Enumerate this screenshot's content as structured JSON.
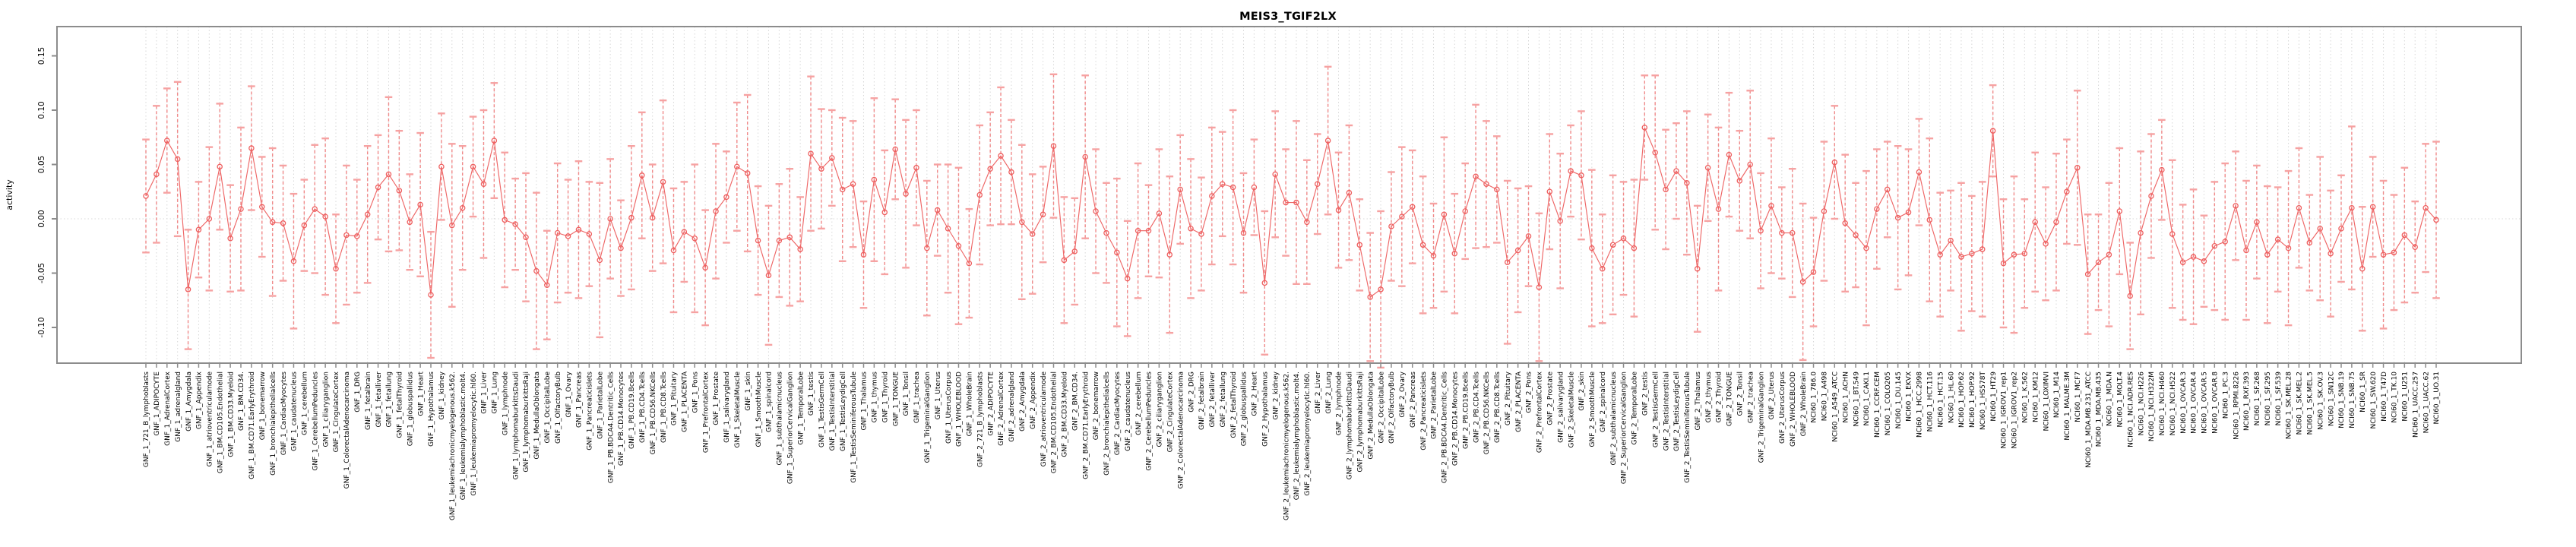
{
  "chart_data": {
    "type": "line",
    "subtype": "points-with-error-bars",
    "title": "MEIS3_TGIF2LX",
    "xlabel": "",
    "ylabel": "activity",
    "ylim": [
      -0.133,
      0.177
    ],
    "yticks": [
      0.15,
      0.1,
      0.05,
      0.0,
      -0.05,
      -0.1
    ],
    "ytick_labels": [
      "0.15",
      "0.10",
      "0.05",
      "0.00",
      "-0.05",
      "-0.10"
    ],
    "grid": "vertical dotted gridline at every category; dotted horizontal line at y=0",
    "legend": "none",
    "point_marker": "open-circle",
    "categories": [
      "GNF_1_721_B_lymphoblasts",
      "GNF_1_ADIPOCYTE",
      "GNF_1_AdrenalCortex",
      "GNF_1_adrenalgland",
      "GNF_1_Amygdala",
      "GNF_1_Appendix",
      "GNF_1_atrioventricularnode",
      "GNF_1_BM.CD105.Endothelial",
      "GNF_1_BM.CD33.Myeloid",
      "GNF_1_BM.CD34.",
      "GNF_1_BM.CD71.EarlyErythroid",
      "GNF_1_bonemarrow",
      "GNF_1_bronchialepithelialcells",
      "GNF_1_CardiacMyocytes",
      "GNF_1_caudatenucleus",
      "GNF_1_cerebellum",
      "GNF_1_CerebellumPeduncles",
      "GNF_1_ciliaryganglion",
      "GNF_1_CingulateCortex",
      "GNF_1_ColorectalAdenocarcinoma",
      "GNF_1_DRG",
      "GNF_1_fetalbrain",
      "GNF_1_fetalliver",
      "GNF_1_fetallung",
      "GNF_1_fetalThyroid",
      "GNF_1_globuspallidus",
      "GNF_1_Heart",
      "GNF_1_Hypothalamus",
      "GNF_1_kidney",
      "GNF_1_leukemiachronicmyelogenous.k562.",
      "GNF_1_leukemialymphoblastic.molt4.",
      "GNF_1_leukemiapromyelocytic.hl60.",
      "GNF_1_Liver",
      "GNF_1_Lung",
      "GNF_1_lymphnode",
      "GNF_1_lymphomaburkittsDaudi",
      "GNF_1_lymphomaburkittsRaji",
      "GNF_1_MedullaOblongata",
      "GNF_1_OccipitalLobe",
      "GNF_1_OlfactoryBulb",
      "GNF_1_Ovary",
      "GNF_1_Pancreas",
      "GNF_1_Pancreaticislets",
      "GNF_1_ParietalLobe",
      "GNF_1_PB.BDCA4.Dentritic_Cells",
      "GNF_1_PB.CD14.Monocytes",
      "GNF_1_PB.CD19.Bcells",
      "GNF_1_PB.CD4.Tcells",
      "GNF_1_PB.CD56.NKCells",
      "GNF_1_PB.CD8.Tcells",
      "GNF_1_Pituitary",
      "GNF_1_PLACENTA",
      "GNF_1_Pons",
      "GNF_1_PrefrontalCortex",
      "GNF_1_Prostate",
      "GNF_1_salivarygland",
      "GNF_1_SkeletalMuscle",
      "GNF_1_skin",
      "GNF_1_SmoothMuscle",
      "GNF_1_spinalcord",
      "GNF_1_subthalamicnucleus",
      "GNF_1_SuperiorCervicalGanglion",
      "GNF_1_TemporalLobe",
      "GNF_1_testis",
      "GNF_1_TestisGermCell",
      "GNF_1_TestisInterstitial",
      "GNF_1_TestisLeydigCell",
      "GNF_1_TestisSeminiferousTubule",
      "GNF_1_Thalamus",
      "GNF_1_thymus",
      "GNF_1_Thyroid",
      "GNF_1_TONGUE",
      "GNF_1_Tonsil",
      "GNF_1_trachea",
      "GNF_1_TrigeminalGanglion",
      "GNF_1_Uterus",
      "GNF_1_UterusCorpus",
      "GNF_1_WHOLEBLOOD",
      "GNF_1_WholeBrain",
      "GNF_2_721_B_lymphoblasts",
      "GNF_2_ADIPOCYTE",
      "GNF_2_AdrenalCortex",
      "GNF_2_adrenalgland",
      "GNF_2_Amygdala",
      "GNF_2_Appendix",
      "GNF_2_atrioventricularnode",
      "GNF_2_BM.CD105.Endothelial",
      "GNF_2_BM.CD33.Myeloid",
      "GNF_2_BM.CD34.",
      "GNF_2_BM.CD71.EarlyErythroid",
      "GNF_2_bonemarrow",
      "GNF_2_bronchialepithelialcells",
      "GNF_2_CardiacMyocytes",
      "GNF_2_caudatenucleus",
      "GNF_2_cerebellum",
      "GNF_2_CerebellumPeduncles",
      "GNF_2_ciliaryganglion",
      "GNF_2_CingulateCortex",
      "GNF_2_ColorectalAdenocarcinoma",
      "GNF_2_DRG",
      "GNF_2_fetalbrain",
      "GNF_2_fetalliver",
      "GNF_2_fetallung",
      "GNF_2_fetalThyroid",
      "GNF_2_globuspallidus",
      "GNF_2_Heart",
      "GNF_2_Hypothalamus",
      "GNF_2_kidney",
      "GNF_2_leukemiachronicmyelogenous.k562.",
      "GNF_2_leukemialymphoblastic.molt4.",
      "GNF_2_leukemiapromyelocytic.hl60.",
      "GNF_2_Liver",
      "GNF_2_Lung",
      "GNF_2_lymphnode",
      "GNF_2_lymphomaburkittsDaudi",
      "GNF_2_lymphomaburkittsRaji",
      "GNF_2_MedullaOblongata",
      "GNF_2_OccipitalLobe",
      "GNF_2_OlfactoryBulb",
      "GNF_2_Ovary",
      "GNF_2_Pancreas",
      "GNF_2_Pancreaticislets",
      "GNF_2_ParietalLobe",
      "GNF_2_PB.BDCA4.Dentritic_Cells",
      "GNF_2_PB.CD14.Monocytes",
      "GNF_2_PB.CD19.Bcells",
      "GNF_2_PB.CD4.Tcells",
      "GNF_2_PB.CD56.NKCells",
      "GNF_2_PB.CD8.Tcells",
      "GNF_2_Pituitary",
      "GNF_2_PLACENTA",
      "GNF_2_Pons",
      "GNF_2_PrefrontalCortex",
      "GNF_2_Prostate",
      "GNF_2_salivarygland",
      "GNF_2_SkeletalMuscle",
      "GNF_2_skin",
      "GNF_2_SmoothMuscle",
      "GNF_2_spinalcord",
      "GNF_2_subthalamicnucleus",
      "GNF_2_SuperiorCervicalGanglion",
      "GNF_2_TemporalLobe",
      "GNF_2_testis",
      "GNF_2_TestisGermCell",
      "GNF_2_TestisInterstitial",
      "GNF_2_TestisLeydigCell",
      "GNF_2_TestisSeminiferousTubule",
      "GNF_2_Thalamus",
      "GNF_2_thymus",
      "GNF_2_Thyroid",
      "GNF_2_TONGUE",
      "GNF_2_Tonsil",
      "GNF_2_trachea",
      "GNF_2_TrigeminalGanglion",
      "GNF_2_Uterus",
      "GNF_2_UterusCorpus",
      "GNF_2_WHOLEBLOOD",
      "GNF_2_WholeBrain",
      "NCI60_1_786.0",
      "NCI60_1_A498",
      "NCI60_1_A549_ATCC",
      "NCI60_1_ACHN",
      "NCI60_1_BT.549",
      "NCI60_1_CAKI.1",
      "NCI60_1_CCRF.CEM",
      "NCI60_1_COLO205",
      "NCI60_1_DU.145",
      "NCI60_1_EKVX",
      "NCI60_1_HCC.2998",
      "NCI60_1_HCT.116",
      "NCI60_1_HCT.15",
      "NCI60_1_HL.60",
      "NCI60_1_HOP.62",
      "NCI60_1_HOP.92",
      "NCI60_1_HS578T",
      "NCI60_1_HT29",
      "NCI60_1_IGROV1_rep1",
      "NCI60_1_IGROV1_rep2",
      "NCI60_1_K.562",
      "NCI60_1_KM12",
      "NCI60_1_LOXIMVI",
      "NCI60_1_M14",
      "NCI60_1_MALME.3M",
      "NCI60_1_MCF7",
      "NCI60_1_MDA.MB.231_ATCC",
      "NCI60_1_MDA.MB.435",
      "NCI60_1_MDA.N",
      "NCI60_1_MOLT.4",
      "NCI60_1_NCI.ADR.RES",
      "NCI60_1_NCI.H226",
      "NCI60_1_NCI.H322M",
      "NCI60_1_NCI.H460",
      "NCI60_1_NCI.H522",
      "NCI60_1_OVCAR.3",
      "NCI60_1_OVCAR.4",
      "NCI60_1_OVCAR.5",
      "NCI60_1_OVCAR.8",
      "NCI60_1_PC.3",
      "NCI60_1_RPMI.8226",
      "NCI60_1_RXF.393",
      "NCI60_1_SF.268",
      "NCI60_1_SF.295",
      "NCI60_1_SF.539",
      "NCI60_1_SK.MEL.28",
      "NCI60_1_SK.MEL.2",
      "NCI60_1_SK.MEL.5",
      "NCI60_1_SK.OV.3",
      "NCI60_1_SN12C",
      "NCI60_1_SNB.19",
      "NCI60_1_SNB.75",
      "NCI60_1_SR",
      "NCI60_1_SW.620",
      "NCI60_1_T47D",
      "NCI60_1_TK.10",
      "NCI60_1_U251",
      "NCI60_1_UACC.257",
      "NCI60_1_UACC.62",
      "NCI60_1_UO.31"
    ],
    "values": [
      0.021,
      0.041,
      0.072,
      0.055,
      -0.065,
      -0.01,
      0.0,
      0.048,
      -0.018,
      0.009,
      0.065,
      0.011,
      -0.003,
      -0.004,
      -0.039,
      -0.006,
      0.009,
      0.002,
      -0.046,
      -0.015,
      -0.016,
      0.004,
      0.029,
      0.041,
      0.026,
      -0.003,
      0.013,
      -0.07,
      0.048,
      -0.006,
      0.01,
      0.048,
      0.032,
      0.072,
      -0.001,
      -0.005,
      -0.017,
      -0.048,
      -0.061,
      -0.013,
      -0.016,
      -0.01,
      -0.014,
      -0.038,
      0.0,
      -0.027,
      0.001,
      0.04,
      0.001,
      0.034,
      -0.029,
      -0.012,
      -0.018,
      -0.045,
      0.007,
      0.02,
      0.048,
      0.042,
      -0.02,
      -0.052,
      -0.02,
      -0.017,
      -0.028,
      0.06,
      0.046,
      0.056,
      0.027,
      0.032,
      -0.033,
      0.036,
      0.006,
      0.064,
      0.023,
      0.047,
      -0.027,
      0.008,
      -0.009,
      -0.025,
      -0.041,
      0.022,
      0.046,
      0.058,
      0.043,
      -0.003,
      -0.014,
      0.004,
      0.067,
      -0.038,
      -0.03,
      0.057,
      0.007,
      -0.013,
      -0.031,
      -0.055,
      -0.011,
      -0.011,
      0.005,
      -0.033,
      0.027,
      -0.009,
      -0.014,
      0.021,
      0.032,
      0.029,
      -0.013,
      0.029,
      -0.059,
      0.041,
      0.015,
      0.015,
      -0.003,
      0.032,
      0.072,
      0.008,
      0.024,
      -0.024,
      -0.072,
      -0.065,
      -0.007,
      0.002,
      0.011,
      -0.024,
      -0.034,
      0.004,
      -0.032,
      0.007,
      0.039,
      0.032,
      0.027,
      -0.04,
      -0.029,
      -0.016,
      -0.063,
      0.025,
      -0.002,
      0.044,
      0.04,
      -0.027,
      -0.046,
      -0.024,
      -0.018,
      -0.027,
      0.084,
      0.061,
      0.027,
      0.044,
      0.033,
      -0.046,
      0.047,
      0.009,
      0.059,
      0.035,
      0.05,
      -0.011,
      0.012,
      -0.013,
      -0.013,
      -0.058,
      -0.049,
      0.007,
      0.052,
      -0.004,
      -0.015,
      -0.027,
      0.009,
      0.027,
      0.001,
      0.006,
      0.043,
      -0.001,
      -0.033,
      -0.02,
      -0.035,
      -0.032,
      -0.028,
      0.081,
      -0.041,
      -0.033,
      -0.032,
      -0.003,
      -0.023,
      -0.003,
      0.025,
      0.047,
      -0.051,
      -0.04,
      -0.033,
      0.007,
      -0.071,
      -0.013,
      0.021,
      0.045,
      -0.014,
      -0.04,
      -0.035,
      -0.039,
      -0.025,
      -0.021,
      0.012,
      -0.029,
      -0.003,
      -0.033,
      -0.019,
      -0.027,
      0.01,
      -0.022,
      -0.009,
      -0.032,
      -0.009,
      0.01,
      -0.046,
      0.011,
      -0.033,
      -0.031,
      -0.015,
      -0.026,
      0.01,
      -0.001
    ],
    "err": [
      0.052,
      0.063,
      0.048,
      0.071,
      0.055,
      0.044,
      0.066,
      0.058,
      0.049,
      0.075,
      0.057,
      0.046,
      0.068,
      0.053,
      0.062,
      0.042,
      0.059,
      0.072,
      0.05,
      0.064,
      0.052,
      0.063,
      0.048,
      0.071,
      0.055,
      0.044,
      0.066,
      0.058,
      0.049,
      0.075,
      0.057,
      0.046,
      0.068,
      0.053,
      0.062,
      0.042,
      0.059,
      0.072,
      0.05,
      0.064,
      0.052,
      0.063,
      0.048,
      0.071,
      0.055,
      0.044,
      0.066,
      0.058,
      0.049,
      0.075,
      0.057,
      0.046,
      0.068,
      0.053,
      0.062,
      0.042,
      0.059,
      0.072,
      0.05,
      0.064,
      0.052,
      0.063,
      0.048,
      0.071,
      0.055,
      0.044,
      0.066,
      0.058,
      0.049,
      0.075,
      0.057,
      0.046,
      0.068,
      0.053,
      0.062,
      0.042,
      0.059,
      0.072,
      0.05,
      0.064,
      0.052,
      0.063,
      0.048,
      0.071,
      0.055,
      0.044,
      0.066,
      0.058,
      0.049,
      0.075,
      0.057,
      0.046,
      0.068,
      0.053,
      0.062,
      0.042,
      0.059,
      0.072,
      0.05,
      0.064,
      0.052,
      0.063,
      0.048,
      0.071,
      0.055,
      0.044,
      0.066,
      0.058,
      0.049,
      0.075,
      0.057,
      0.046,
      0.068,
      0.053,
      0.062,
      0.042,
      0.059,
      0.072,
      0.05,
      0.064,
      0.052,
      0.063,
      0.048,
      0.071,
      0.055,
      0.044,
      0.066,
      0.058,
      0.049,
      0.075,
      0.057,
      0.046,
      0.068,
      0.053,
      0.062,
      0.042,
      0.059,
      0.072,
      0.05,
      0.064,
      0.052,
      0.063,
      0.048,
      0.071,
      0.055,
      0.044,
      0.066,
      0.058,
      0.049,
      0.075,
      0.057,
      0.046,
      0.068,
      0.053,
      0.062,
      0.042,
      0.059,
      0.072,
      0.05,
      0.064,
      0.052,
      0.063,
      0.048,
      0.071,
      0.055,
      0.044,
      0.066,
      0.058,
      0.049,
      0.075,
      0.057,
      0.046,
      0.068,
      0.053,
      0.062,
      0.042,
      0.059,
      0.072,
      0.05,
      0.064,
      0.052,
      0.063,
      0.048,
      0.071,
      0.055,
      0.044,
      0.066,
      0.058,
      0.049,
      0.075,
      0.057,
      0.046,
      0.068,
      0.053,
      0.062,
      0.042,
      0.059,
      0.072,
      0.05,
      0.064,
      0.052,
      0.063,
      0.048,
      0.071,
      0.055,
      0.044,
      0.066,
      0.058,
      0.049,
      0.075,
      0.057,
      0.046,
      0.068,
      0.053,
      0.062,
      0.042,
      0.059,
      0.072
    ]
  },
  "colors": {
    "point": "#ee5f5f",
    "series_line": "#ee6666",
    "errorbar_cap": "#f6a2a2",
    "errorbar_stem": "#f08a8a",
    "grid": "#d8d8d8",
    "axis": "#8c8c8c",
    "text": "#000000"
  }
}
